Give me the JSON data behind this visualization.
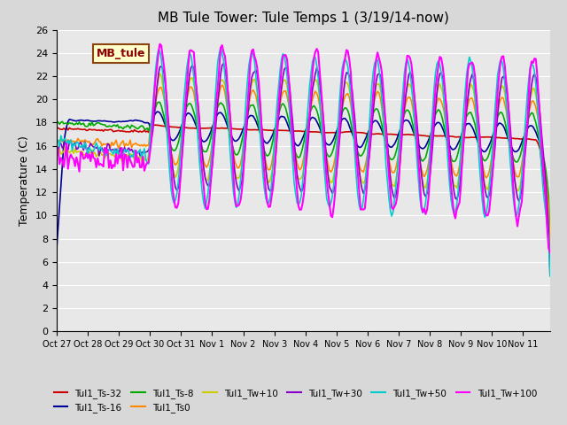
{
  "title": "MB Tule Tower: Tule Temps 1 (3/19/14-now)",
  "ylabel": "Temperature (C)",
  "xlabel": "",
  "ylim": [
    0,
    26
  ],
  "yticks": [
    0,
    2,
    4,
    6,
    8,
    10,
    12,
    14,
    16,
    18,
    20,
    22,
    24,
    26
  ],
  "bg_color": "#d8d8d8",
  "plot_bg_color": "#e8e8e8",
  "legend_box_color": "#ffffcc",
  "legend_box_edge": "#8b4513",
  "legend_label_color": "#8b0000",
  "series": [
    {
      "label": "Tul1_Ts-32",
      "color": "#cc0000",
      "lw": 1.2
    },
    {
      "label": "Tul1_Ts-16",
      "color": "#000099",
      "lw": 1.2
    },
    {
      "label": "Tul1_Ts-8",
      "color": "#00aa00",
      "lw": 1.2
    },
    {
      "label": "Tul1_Ts0",
      "color": "#ff8800",
      "lw": 1.2
    },
    {
      "label": "Tul1_Tw+10",
      "color": "#cccc00",
      "lw": 1.2
    },
    {
      "label": "Tul1_Tw+30",
      "color": "#8800cc",
      "lw": 1.2
    },
    {
      "label": "Tul1_Tw+50",
      "color": "#00cccc",
      "lw": 1.2
    },
    {
      "label": "Tul1_Tw+100",
      "color": "#ff00ff",
      "lw": 1.5
    }
  ],
  "num_points": 350,
  "x_tick_labels": [
    "Oct 27",
    "Oct 28",
    "Oct 29",
    "Oct 30",
    "Oct 31",
    "Nov 1",
    "Nov 2",
    "Nov 3",
    "Nov 4",
    "Nov 5",
    "Nov 6",
    "Nov 7",
    "Nov 8",
    "Nov 9",
    "Nov 10",
    "Nov 11"
  ],
  "x_tick_positions": [
    0,
    22,
    44,
    66,
    88,
    110,
    132,
    154,
    176,
    198,
    220,
    242,
    264,
    286,
    308,
    330
  ]
}
